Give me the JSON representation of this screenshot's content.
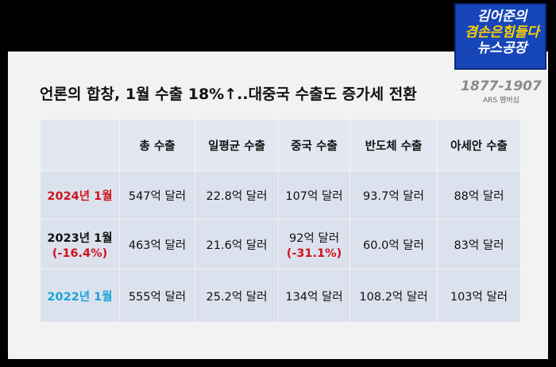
{
  "title": "언론의 합창, 1월 수출 18%↑..대중국 수출도 증가세 전환",
  "logo": {
    "line1": "김어준의",
    "line2": "겸손은힘들다",
    "line3": "뉴스공장",
    "phone": "1877-1907",
    "ars": "ARS 멤버십"
  },
  "colors": {
    "highlight_red": "#d0141c",
    "highlight_cyan": "#1aa5d8",
    "table_bg": "#dce1ee"
  },
  "table": {
    "headers": [
      "",
      "총 수출",
      "일평균 수출",
      "중국 수출",
      "반도체 수출",
      "아세안 수출"
    ],
    "rows": [
      {
        "label": "2024년 1월",
        "label_sub": "",
        "cells": [
          "547억 달러",
          "22.8억 달러",
          "107억 달러",
          "93.7억 달러",
          "88억 달러"
        ],
        "china_sub": ""
      },
      {
        "label": "2023년 1월",
        "label_sub": "(-16.4%)",
        "cells": [
          "463억 달러",
          "21.6억 달러",
          "92억 달러",
          "60.0억 달러",
          "83억 달러"
        ],
        "china_sub": "(-31.1%)"
      },
      {
        "label": "2022년 1월",
        "label_sub": "",
        "cells": [
          "555억 달러",
          "25.2억 달러",
          "134억 달러",
          "108.2억 달러",
          "103억 달러"
        ],
        "china_sub": ""
      }
    ]
  }
}
